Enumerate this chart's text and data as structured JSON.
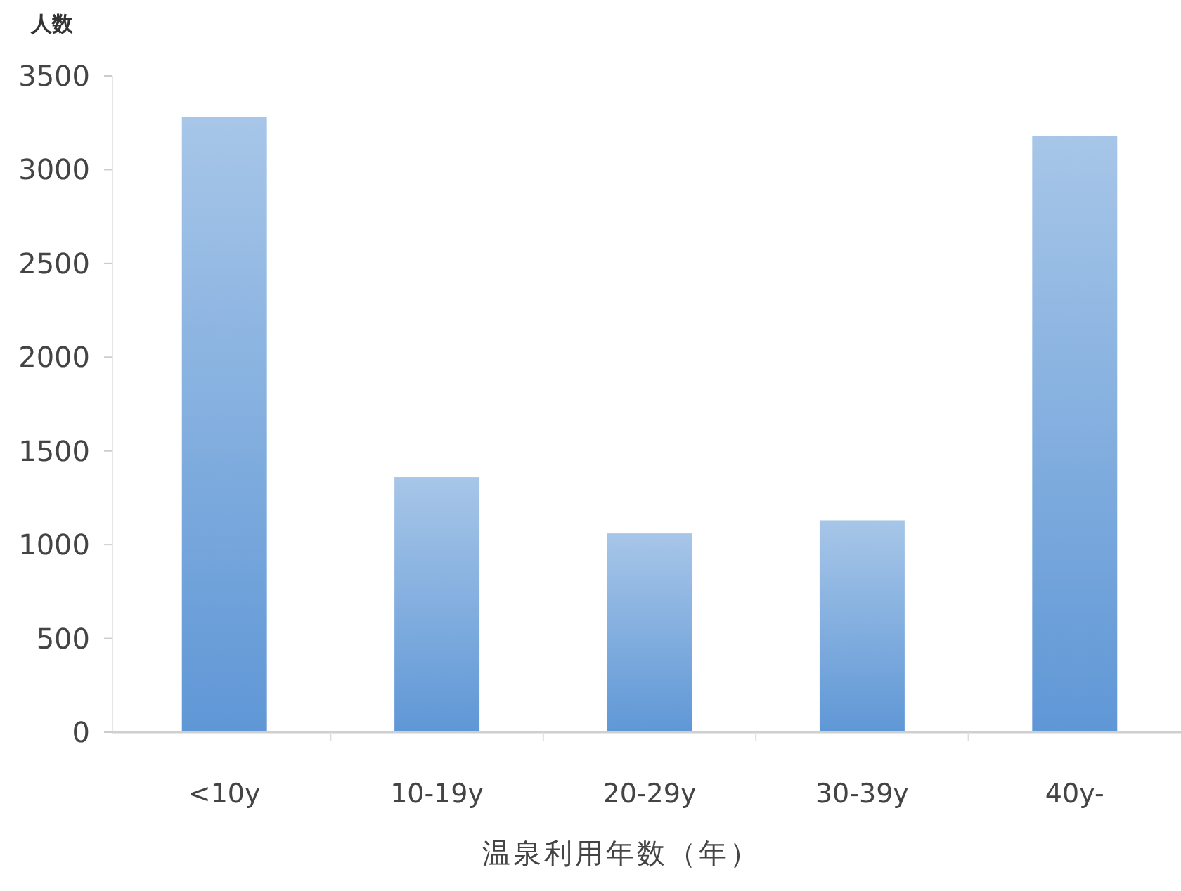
{
  "chart_data": {
    "type": "bar",
    "ylabel": "人数",
    "xlabel": "温泉利用年数（年）",
    "categories": [
      "<10y",
      "10-19y",
      "20-29y",
      "30-39y",
      "40y-"
    ],
    "values": [
      3280,
      1360,
      1060,
      1130,
      3180
    ],
    "color": "#5f97d6",
    "ylim": [
      0,
      3500
    ],
    "yticks": [
      0,
      500,
      1000,
      1500,
      2000,
      2500,
      3000,
      3500
    ],
    "grid": false
  }
}
